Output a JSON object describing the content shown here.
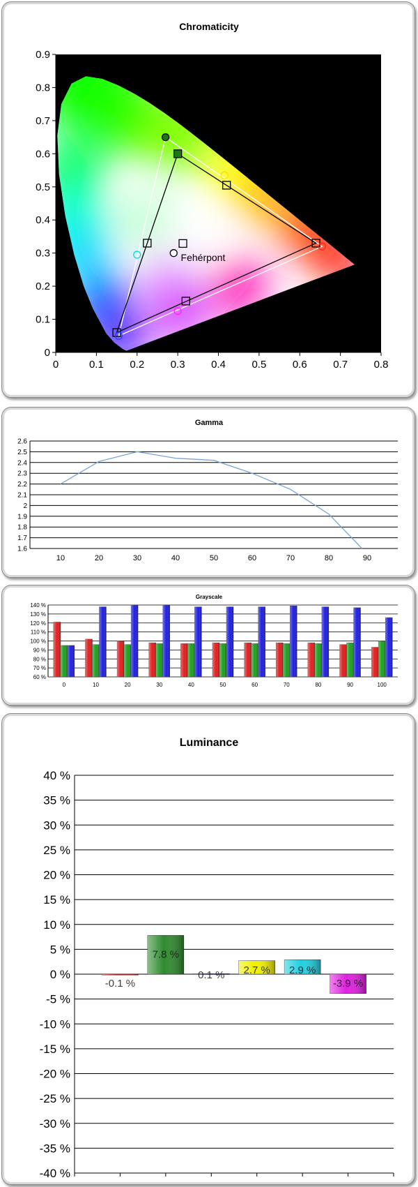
{
  "chromaticity": {
    "title": "Chromaticity",
    "white_point_label": "Fehérpont",
    "chart_data": {
      "type": "scatter",
      "title": "Chromaticity",
      "xlim": [
        0,
        0.8
      ],
      "ylim": [
        0,
        0.9
      ],
      "x_ticks": [
        "0",
        "0.1",
        "0.2",
        "0.3",
        "0.4",
        "0.5",
        "0.6",
        "0.7",
        "0.8"
      ],
      "y_ticks": [
        "0",
        "0.1",
        "0.2",
        "0.3",
        "0.4",
        "0.5",
        "0.6",
        "0.7",
        "0.8",
        "0.9"
      ],
      "reference_gamut": {
        "red": [
          0.64,
          0.33
        ],
        "green": [
          0.3,
          0.6
        ],
        "blue": [
          0.15,
          0.06
        ],
        "yellow": [
          0.42,
          0.505
        ],
        "cyan": [
          0.225,
          0.33
        ],
        "magenta": [
          0.32,
          0.155
        ],
        "white": [
          0.3127,
          0.329
        ]
      },
      "measured_gamut": {
        "red": [
          0.655,
          0.32
        ],
        "green": [
          0.27,
          0.65
        ],
        "blue": [
          0.155,
          0.05
        ],
        "yellow": [
          0.415,
          0.535
        ],
        "cyan": [
          0.2,
          0.295
        ],
        "magenta": [
          0.3,
          0.125
        ],
        "white": [
          0.29,
          0.3
        ]
      }
    }
  },
  "gamma": {
    "title": "Gamma",
    "chart_data": {
      "type": "line",
      "title": "Gamma",
      "x": [
        10,
        20,
        30,
        40,
        50,
        60,
        70,
        80,
        90
      ],
      "values": [
        2.2,
        2.41,
        2.5,
        2.44,
        2.42,
        2.3,
        2.15,
        1.92,
        1.55
      ],
      "ylim": [
        1.6,
        2.6
      ],
      "x_ticks": [
        "10",
        "20",
        "30",
        "40",
        "50",
        "60",
        "70",
        "80",
        "90"
      ],
      "y_ticks": [
        "1.6",
        "1.7",
        "1.8",
        "1.9",
        "2",
        "2.1",
        "2.2",
        "2.3",
        "2.4",
        "2.5",
        "2.6"
      ],
      "color": "#7aa3d6"
    }
  },
  "grayscale": {
    "title": "Grayscale",
    "chart_data": {
      "type": "bar",
      "title": "Grayscale",
      "categories": [
        "0",
        "10",
        "20",
        "30",
        "40",
        "50",
        "60",
        "70",
        "80",
        "90",
        "100"
      ],
      "series": [
        {
          "color": "#e02020",
          "values": [
            121,
            102,
            100,
            98,
            97,
            98,
            98,
            98,
            98,
            96,
            93
          ]
        },
        {
          "color": "#20a020",
          "values": [
            95,
            96,
            96,
            97,
            97,
            97,
            97,
            97,
            97,
            98,
            100
          ]
        },
        {
          "color": "#2020e0",
          "values": [
            95,
            138,
            141,
            141,
            138,
            138,
            138,
            139,
            138,
            137,
            126
          ]
        }
      ],
      "ylim": [
        60,
        140
      ],
      "y_ticks": [
        "60 %",
        "70 %",
        "80 %",
        "90 %",
        "100 %",
        "110 %",
        "120 %",
        "130 %",
        "140 %"
      ]
    }
  },
  "luminance": {
    "title": "Luminance",
    "chart_data": {
      "type": "bar",
      "title": "Luminance",
      "categories": [
        "red",
        "green",
        "blue",
        "yellow",
        "cyan",
        "magenta"
      ],
      "values": [
        -0.1,
        7.8,
        0.1,
        2.7,
        2.9,
        -3.9
      ],
      "labels": [
        "-0.1 %",
        "7.8 %",
        "0.1 %",
        "2.7 %",
        "2.9 %",
        "-3.9 %"
      ],
      "colors": [
        "#e02020",
        "#2e8a2e",
        "#3030d0",
        "#f0f000",
        "#20d0e0",
        "#e020e0"
      ],
      "ylim": [
        -40,
        40
      ],
      "y_ticks": [
        "40 %",
        "35 %",
        "30 %",
        "25 %",
        "20 %",
        "15 %",
        "10 %",
        "5 %",
        "0 %",
        "-5 %",
        "-10 %",
        "-15 %",
        "-20 %",
        "-25 %",
        "-30 %",
        "-35 %",
        "-40 %"
      ]
    }
  }
}
